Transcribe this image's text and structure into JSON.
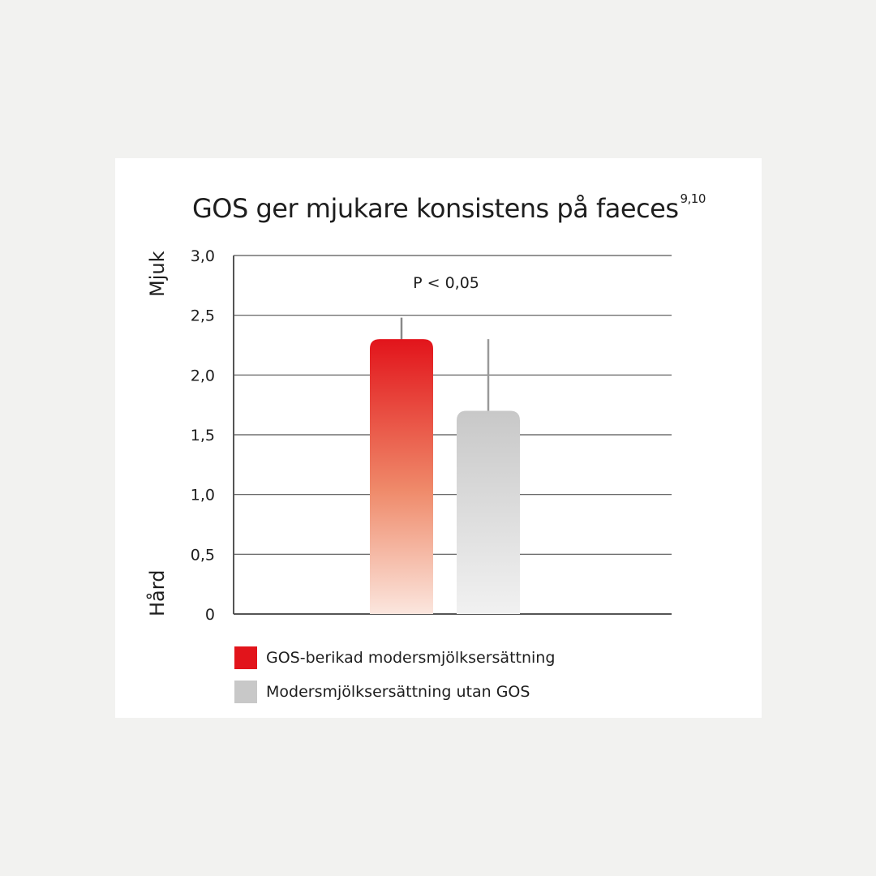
{
  "chart_data": {
    "type": "bar",
    "title": "GOS ger mjukare konsistens på faeces",
    "title_superscript": "9,10",
    "ylabel_top": "Mjuk",
    "ylabel_bottom": "Hård",
    "ylim": [
      0,
      3.0
    ],
    "yticks": [
      "0",
      "0,5",
      "1,0",
      "1,5",
      "2,0",
      "2,5",
      "3,0"
    ],
    "ytick_values": [
      0,
      0.5,
      1.0,
      1.5,
      2.0,
      2.5,
      3.0
    ],
    "annotation": "P < 0,05",
    "grid": true,
    "series": [
      {
        "name": "GOS-berikad modersmjölksersättning",
        "value": 2.3,
        "error_upper": 2.48,
        "color": "#e2141b"
      },
      {
        "name": "Modersmjölksersättning utan GOS",
        "value": 1.7,
        "error_upper": 2.3,
        "color": "#c8c8c8"
      }
    ],
    "legend_position": "bottom-left"
  }
}
